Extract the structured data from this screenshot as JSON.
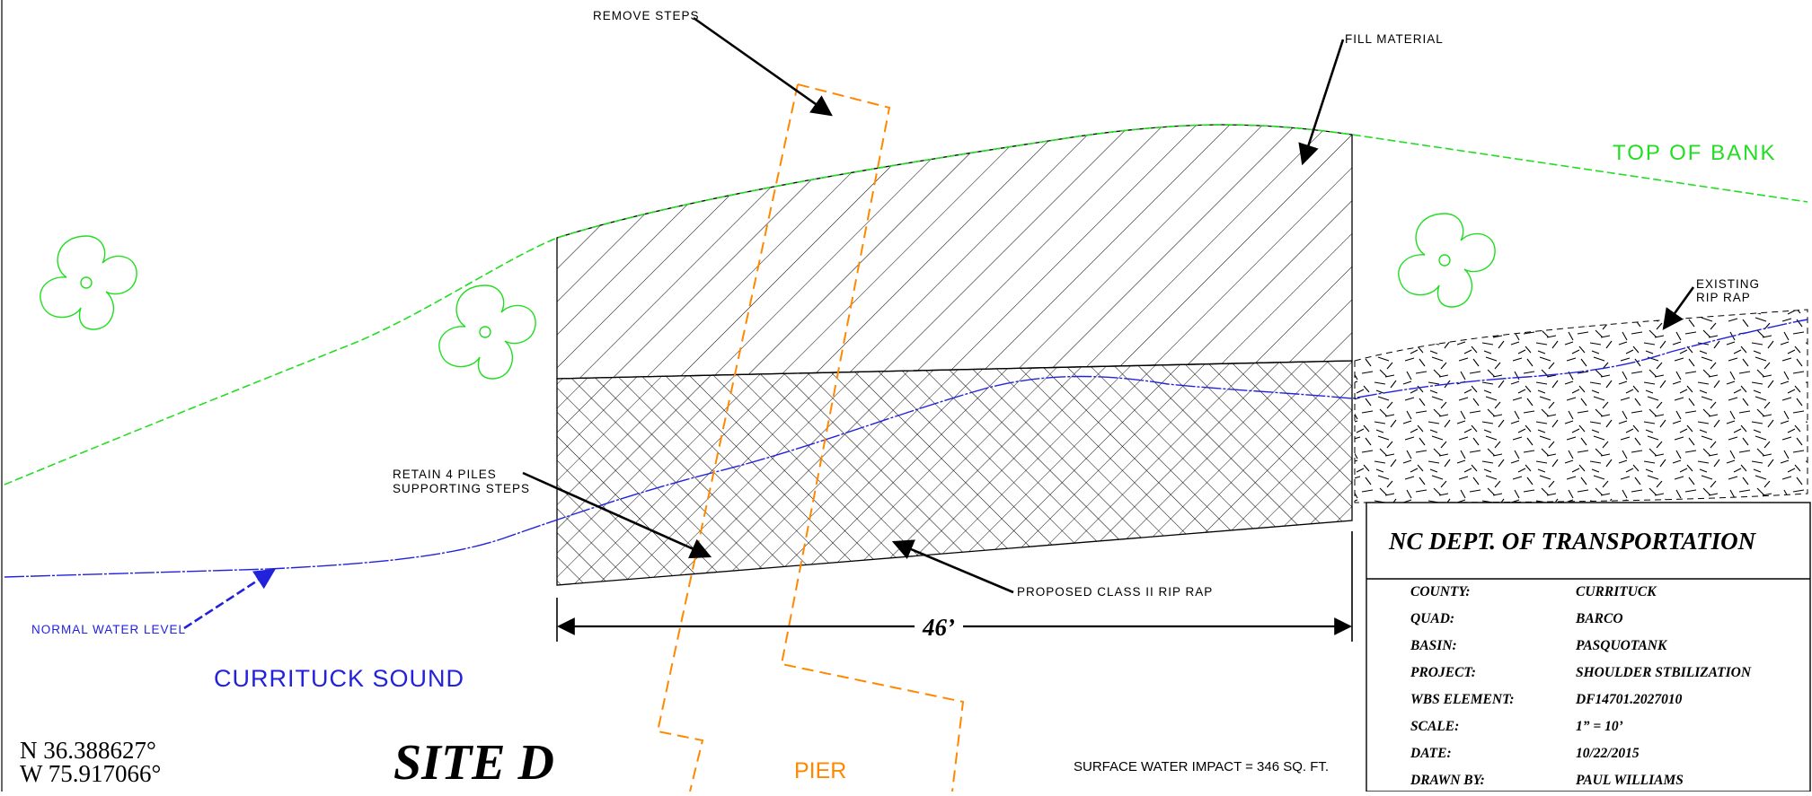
{
  "site_title": "SITE  D",
  "coordinates": {
    "north": "N  36.388627°",
    "west": "W 75.917066°"
  },
  "labels": {
    "remove_steps": "REMOVE STEPS",
    "fill_material": "FILL MATERIAL",
    "top_of_bank": "TOP OF BANK",
    "existing_rip_rap_line1": "EXISTING",
    "existing_rip_rap_line2": "RIP RAP",
    "retain_piles_line1": "RETAIN 4 PILES",
    "retain_piles_line2": "SUPPORTING STEPS",
    "proposed_rip_rap": "PROPOSED CLASS II RIP RAP",
    "normal_water_level": "NORMAL WATER LEVEL",
    "water_body": "CURRITUCK SOUND",
    "pier": "PIER",
    "surface_water_impact": "SURFACE WATER IMPACT = 346 SQ. FT.",
    "dimension": "46’"
  },
  "title_block": {
    "agency": "NC  DEPT. OF  TRANSPORTATION",
    "rows": [
      {
        "key": "COUNTY:",
        "value": "CURRITUCK"
      },
      {
        "key": "QUAD:",
        "value": "BARCO"
      },
      {
        "key": "BASIN:",
        "value": "PASQUOTANK"
      },
      {
        "key": "PROJECT:",
        "value": "SHOULDER  STBILIZATION"
      },
      {
        "key": "WBS  ELEMENT:",
        "value": "DF14701.2027010"
      },
      {
        "key": "SCALE:",
        "value": "1”  =   10’"
      },
      {
        "key": "DATE:",
        "value": "10/22/2015"
      },
      {
        "key": "DRAWN  BY:",
        "value": "PAUL  WILLIAMS"
      }
    ]
  },
  "colors": {
    "top_of_bank": "#22dd22",
    "water_line": "#2222dd",
    "pier": "#ff8800",
    "ink": "#000000",
    "tree": "#22dd22"
  },
  "icons": [
    "tree-symbol-icon",
    "arrow-icon"
  ]
}
